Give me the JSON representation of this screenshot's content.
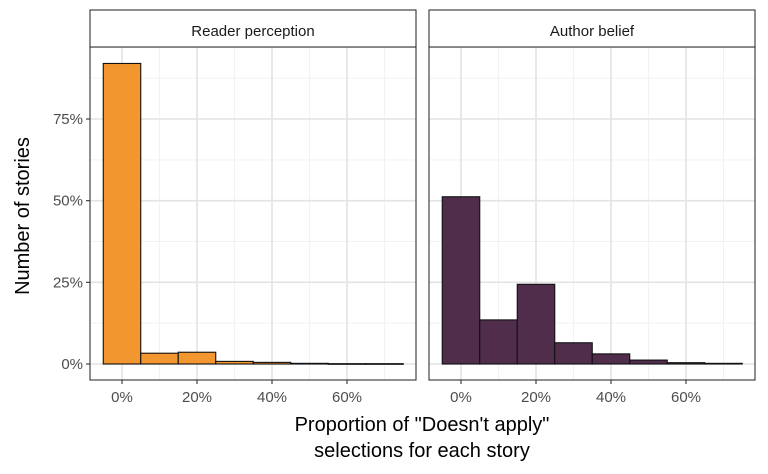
{
  "chart_data": {
    "type": "bar",
    "facets": [
      {
        "title": "Reader perception",
        "color": "#F2962F",
        "bins_center": [
          0,
          10,
          20,
          30,
          40,
          50,
          60,
          70
        ],
        "values": [
          92.0,
          3.3,
          3.6,
          0.8,
          0.5,
          0.2,
          0.1,
          0.1
        ]
      },
      {
        "title": "Author belief",
        "color": "#502D4A",
        "bins_center": [
          0,
          10,
          20,
          30,
          40,
          50,
          60,
          70
        ],
        "values": [
          51.2,
          13.5,
          24.4,
          6.5,
          3.1,
          1.2,
          0.4,
          0.2
        ]
      }
    ],
    "x_ticks": [
      "0%",
      "20%",
      "40%",
      "60%"
    ],
    "y_ticks": [
      "0%",
      "25%",
      "50%",
      "75%"
    ],
    "xlim": [
      -5,
      75
    ],
    "ylim": [
      0,
      100
    ],
    "xlabel_line1": "Proportion of \"Doesn't apply\"",
    "xlabel_line2": "selections for each story",
    "ylabel": "Number of stories",
    "grid": true,
    "legend": "none"
  }
}
